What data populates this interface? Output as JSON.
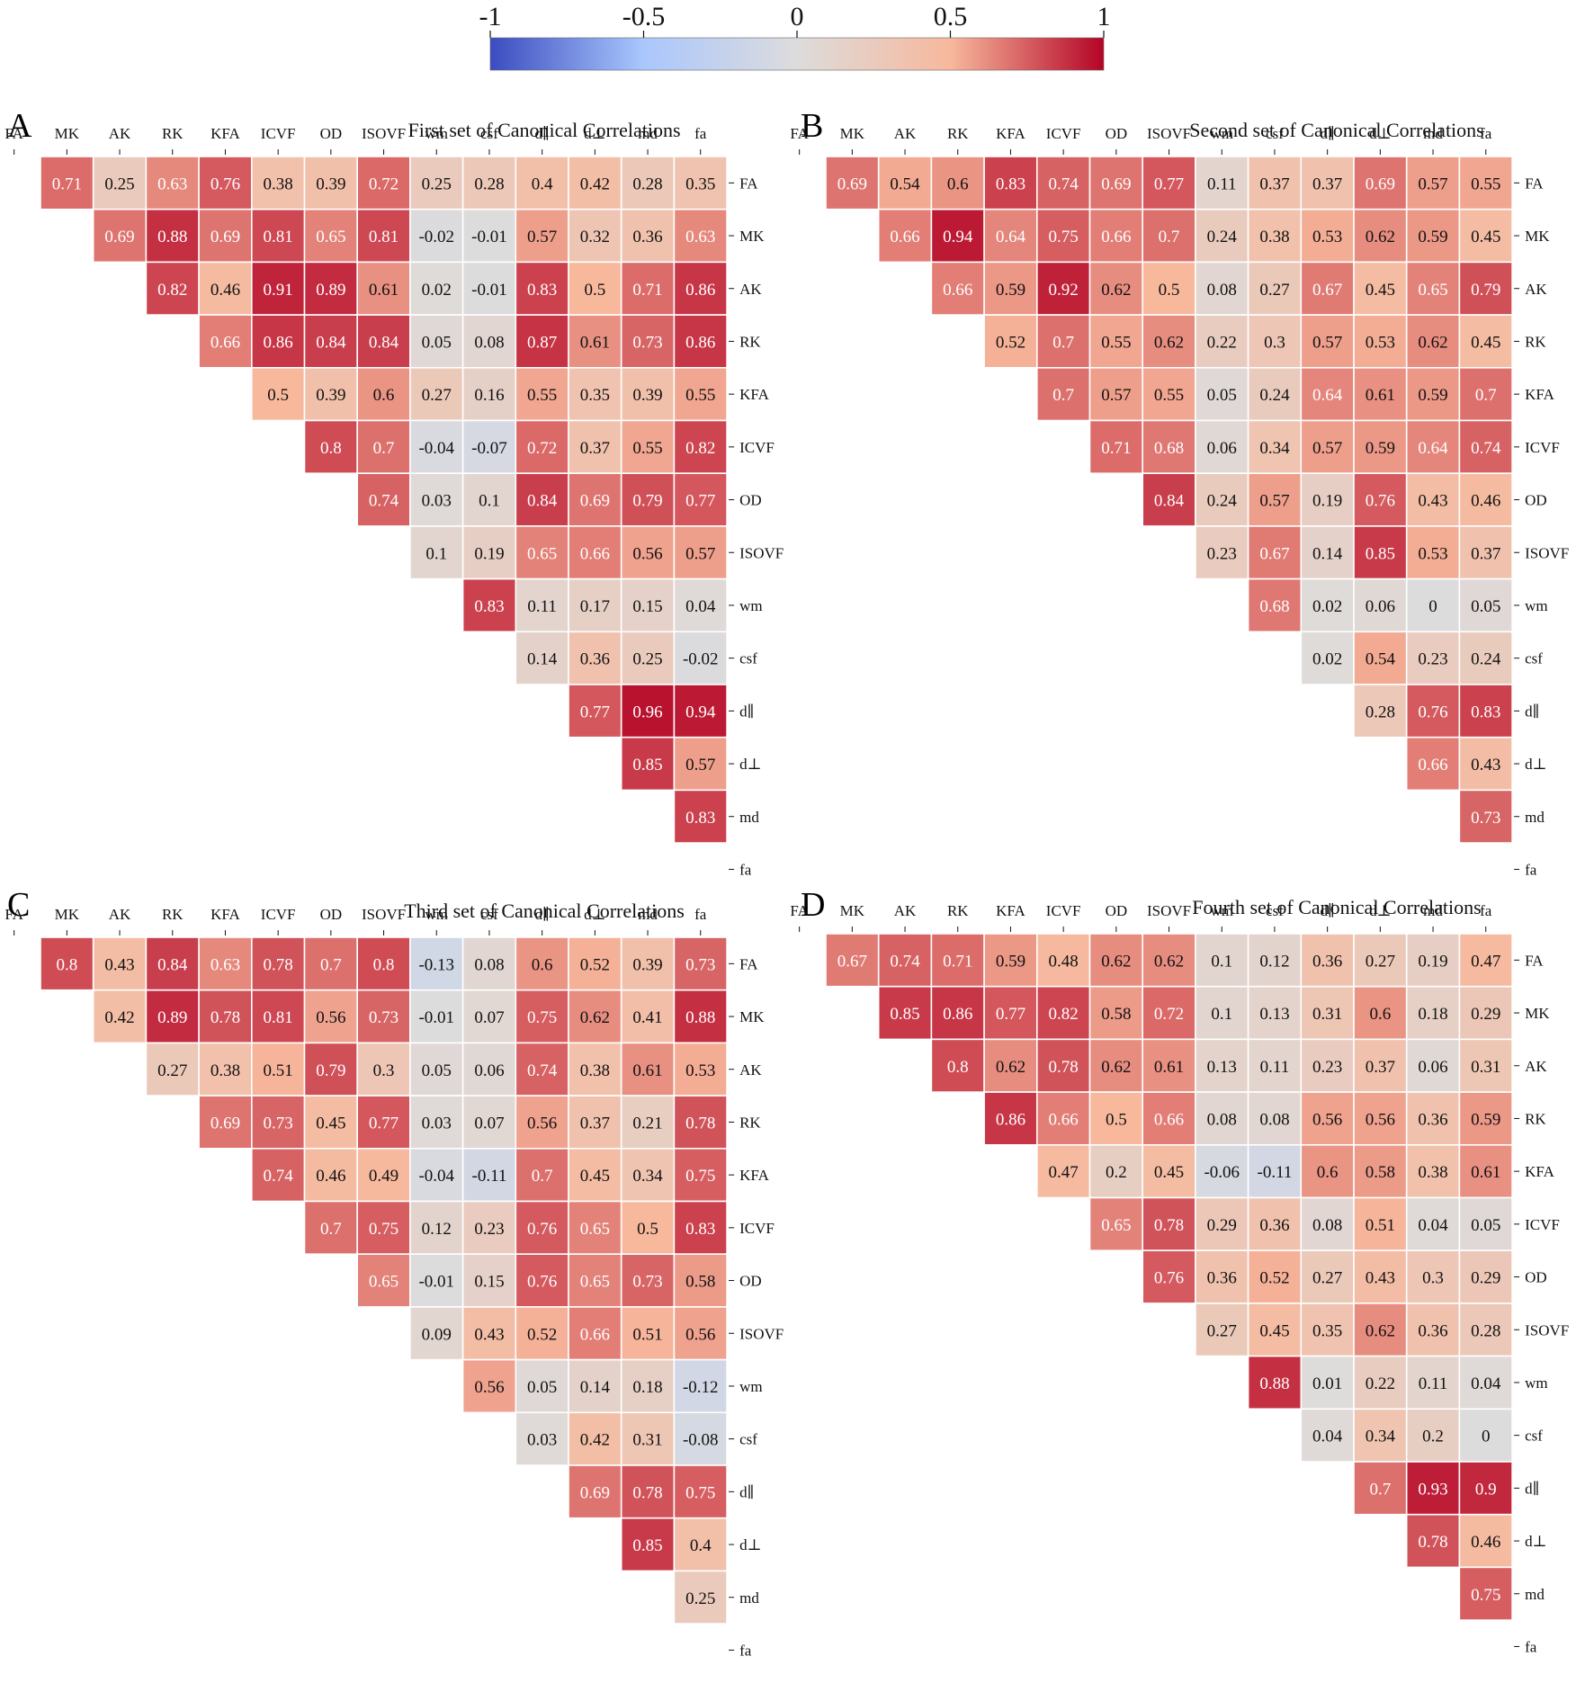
{
  "colorbar": {
    "ticks": [
      -1,
      -0.5,
      0,
      0.5,
      1
    ],
    "tick_labels": [
      "-1",
      "-0.5",
      "0",
      "0.5",
      "1"
    ],
    "stops": [
      "#3b4cc0",
      "#aac7fd",
      "#dddcdc",
      "#f7b89c",
      "#b40426"
    ]
  },
  "chart_data": [
    {
      "type": "heatmap",
      "letter": "A",
      "title": "First set of Canonical Correlations",
      "vmin": -1,
      "vmax": 1,
      "variables": [
        "FA",
        "MK",
        "AK",
        "RK",
        "KFA",
        "ICVF",
        "OD",
        "ISOVF",
        "wm",
        "csf",
        "d∥",
        "d⊥",
        "md",
        "fa"
      ],
      "rows": [
        [
          0.71,
          0.25,
          0.63,
          0.76,
          0.38,
          0.39,
          0.72,
          0.25,
          0.28,
          0.4,
          0.42,
          0.28,
          0.35
        ],
        [
          0.69,
          0.88,
          0.69,
          0.81,
          0.65,
          0.81,
          -0.02,
          -0.01,
          0.57,
          0.32,
          0.36,
          0.63
        ],
        [
          0.82,
          0.46,
          0.91,
          0.89,
          0.61,
          0.02,
          -0.01,
          0.83,
          0.5,
          0.71,
          0.86
        ],
        [
          0.66,
          0.86,
          0.84,
          0.84,
          0.05,
          0.08,
          0.87,
          0.61,
          0.73,
          0.86
        ],
        [
          0.5,
          0.39,
          0.6,
          0.27,
          0.16,
          0.55,
          0.35,
          0.39,
          0.55
        ],
        [
          0.8,
          0.7,
          -0.04,
          -0.07,
          0.72,
          0.37,
          0.55,
          0.82
        ],
        [
          0.74,
          0.03,
          0.1,
          0.84,
          0.69,
          0.79,
          0.77
        ],
        [
          0.1,
          0.19,
          0.65,
          0.66,
          0.56,
          0.57
        ],
        [
          0.83,
          0.11,
          0.17,
          0.15,
          0.04
        ],
        [
          0.14,
          0.36,
          0.25,
          -0.02
        ],
        [
          0.77,
          0.96,
          0.94
        ],
        [
          0.85,
          0.57
        ],
        [
          0.83
        ]
      ]
    },
    {
      "type": "heatmap",
      "letter": "B",
      "title": "Second set of Canonical Correlations",
      "vmin": -1,
      "vmax": 1,
      "variables": [
        "FA",
        "MK",
        "AK",
        "RK",
        "KFA",
        "ICVF",
        "OD",
        "ISOVF",
        "wm",
        "csf",
        "d∥",
        "d⊥",
        "md",
        "fa"
      ],
      "rows": [
        [
          0.69,
          0.54,
          0.6,
          0.83,
          0.74,
          0.69,
          0.77,
          0.11,
          0.37,
          0.37,
          0.69,
          0.57,
          0.55
        ],
        [
          0.66,
          0.94,
          0.64,
          0.75,
          0.66,
          0.7,
          0.24,
          0.38,
          0.53,
          0.62,
          0.59,
          0.45
        ],
        [
          0.66,
          0.59,
          0.92,
          0.62,
          0.5,
          0.08,
          0.27,
          0.67,
          0.45,
          0.65,
          0.79
        ],
        [
          0.52,
          0.7,
          0.55,
          0.62,
          0.22,
          0.3,
          0.57,
          0.53,
          0.62,
          0.45
        ],
        [
          0.7,
          0.57,
          0.55,
          0.05,
          0.24,
          0.64,
          0.61,
          0.59,
          0.7
        ],
        [
          0.71,
          0.68,
          0.06,
          0.34,
          0.57,
          0.59,
          0.64,
          0.74
        ],
        [
          0.84,
          0.24,
          0.57,
          0.19,
          0.76,
          0.43,
          0.46
        ],
        [
          0.23,
          0.67,
          0.14,
          0.85,
          0.53,
          0.37
        ],
        [
          0.68,
          0.02,
          0.06,
          0,
          0.05
        ],
        [
          0.02,
          0.54,
          0.23,
          0.24
        ],
        [
          0.28,
          0.76,
          0.83
        ],
        [
          0.66,
          0.43
        ],
        [
          0.73
        ]
      ]
    },
    {
      "type": "heatmap",
      "letter": "C",
      "title": "Third set of Canonical Correlations",
      "vmin": -1,
      "vmax": 1,
      "variables": [
        "FA",
        "MK",
        "AK",
        "RK",
        "KFA",
        "ICVF",
        "OD",
        "ISOVF",
        "wm",
        "csf",
        "d∥",
        "d⊥",
        "md",
        "fa"
      ],
      "rows": [
        [
          0.8,
          0.43,
          0.84,
          0.63,
          0.78,
          0.7,
          0.8,
          -0.13,
          0.08,
          0.6,
          0.52,
          0.39,
          0.73
        ],
        [
          0.42,
          0.89,
          0.78,
          0.81,
          0.56,
          0.73,
          -0.01,
          0.07,
          0.75,
          0.62,
          0.41,
          0.88
        ],
        [
          0.27,
          0.38,
          0.51,
          0.79,
          0.3,
          0.05,
          0.06,
          0.74,
          0.38,
          0.61,
          0.53
        ],
        [
          0.69,
          0.73,
          0.45,
          0.77,
          0.03,
          0.07,
          0.56,
          0.37,
          0.21,
          0.78
        ],
        [
          0.74,
          0.46,
          0.49,
          -0.04,
          -0.11,
          0.7,
          0.45,
          0.34,
          0.75
        ],
        [
          0.7,
          0.75,
          0.12,
          0.23,
          0.76,
          0.65,
          0.5,
          0.83
        ],
        [
          0.65,
          -0.01,
          0.15,
          0.76,
          0.65,
          0.73,
          0.58
        ],
        [
          0.09,
          0.43,
          0.52,
          0.66,
          0.51,
          0.56
        ],
        [
          0.56,
          0.05,
          0.14,
          0.18,
          -0.12
        ],
        [
          0.03,
          0.42,
          0.31,
          -0.08
        ],
        [
          0.69,
          0.78,
          0.75
        ],
        [
          0.85,
          0.4
        ],
        [
          0.25
        ]
      ]
    },
    {
      "type": "heatmap",
      "letter": "D",
      "title": "Fourth set of Canonical Correlations",
      "vmin": -1,
      "vmax": 1,
      "variables": [
        "FA",
        "MK",
        "AK",
        "RK",
        "KFA",
        "ICVF",
        "OD",
        "ISOVF",
        "wm",
        "csf",
        "d∥",
        "d⊥",
        "md",
        "fa"
      ],
      "rows": [
        [
          0.67,
          0.74,
          0.71,
          0.59,
          0.48,
          0.62,
          0.62,
          0.1,
          0.12,
          0.36,
          0.27,
          0.19,
          0.47
        ],
        [
          0.85,
          0.86,
          0.77,
          0.82,
          0.58,
          0.72,
          0.1,
          0.13,
          0.31,
          0.6,
          0.18,
          0.29
        ],
        [
          0.8,
          0.62,
          0.78,
          0.62,
          0.61,
          0.13,
          0.11,
          0.23,
          0.37,
          0.06,
          0.31
        ],
        [
          0.86,
          0.66,
          0.5,
          0.66,
          0.08,
          0.08,
          0.56,
          0.56,
          0.36,
          0.59
        ],
        [
          0.47,
          0.2,
          0.45,
          -0.06,
          -0.11,
          0.6,
          0.58,
          0.38,
          0.61
        ],
        [
          0.65,
          0.78,
          0.29,
          0.36,
          0.08,
          0.51,
          0.04,
          0.05
        ],
        [
          0.76,
          0.36,
          0.52,
          0.27,
          0.43,
          0.3,
          0.29
        ],
        [
          0.27,
          0.45,
          0.35,
          0.62,
          0.36,
          0.28
        ],
        [
          0.88,
          0.01,
          0.22,
          0.11,
          0.04
        ],
        [
          0.04,
          0.34,
          0.2,
          0
        ],
        [
          0.7,
          0.93,
          0.9
        ],
        [
          0.78,
          0.46
        ],
        [
          0.75
        ]
      ]
    }
  ]
}
